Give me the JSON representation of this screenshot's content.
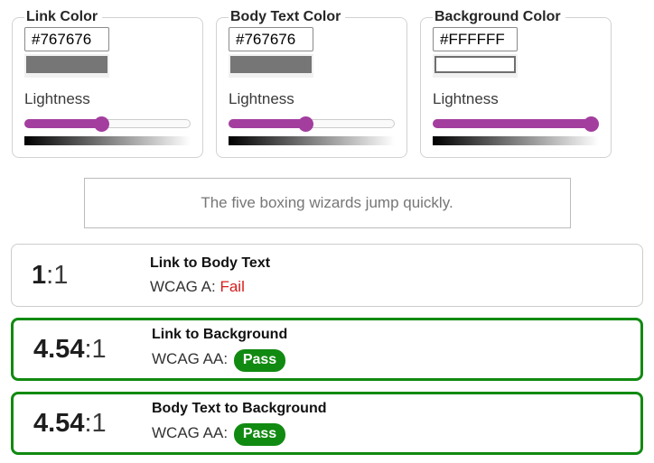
{
  "panels": [
    {
      "legend": "Link Color",
      "hex_value": "#767676",
      "swatch_color": "#767676",
      "swatch_border_color": "#767676",
      "lightness_label": "Lightness",
      "lightness_percent": 46
    },
    {
      "legend": "Body Text Color",
      "hex_value": "#767676",
      "swatch_color": "#767676",
      "swatch_border_color": "#767676",
      "lightness_label": "Lightness",
      "lightness_percent": 46
    },
    {
      "legend": "Background Color",
      "hex_value": "#FFFFFF",
      "swatch_color": "#FFFFFF",
      "swatch_border_color": "#6f6f6f",
      "lightness_label": "Lightness",
      "lightness_percent": 100
    }
  ],
  "preview": {
    "sample_text": "The five boxing wizards jump quickly.",
    "text_color": "#767676",
    "background_color": "#FFFFFF"
  },
  "results": [
    {
      "ratio_value": "1",
      "ratio_suffix": ":1",
      "title": "Link to Body Text",
      "wcag_label": "WCAG A:",
      "status": "Fail"
    },
    {
      "ratio_value": "4.54",
      "ratio_suffix": ":1",
      "title": "Link to Background",
      "wcag_label": "WCAG AA:",
      "status": "Pass"
    },
    {
      "ratio_value": "4.54",
      "ratio_suffix": ":1",
      "title": "Body Text to Background",
      "wcag_label": "WCAG AA:",
      "status": "Pass"
    }
  ],
  "colors": {
    "slider_accent": "#a33e9f",
    "pass_green": "#118a11",
    "fail_red": "#d71c1c",
    "sample_gray": "#767676"
  }
}
